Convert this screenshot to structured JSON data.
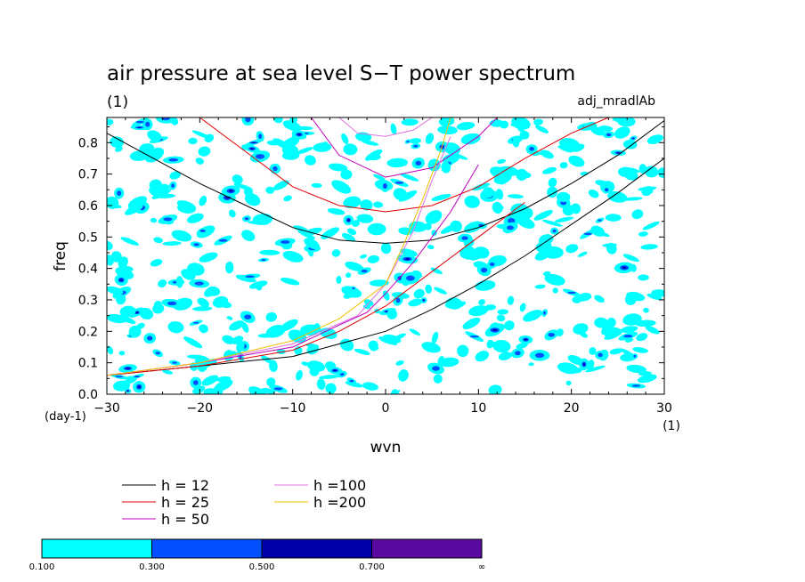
{
  "chart_data": {
    "type": "contour",
    "title": "air pressure at sea level S−T power spectrum",
    "subtitle_left": "(1)",
    "subtitle_right": "adj_mradlAb",
    "xlabel": "wvn",
    "ylabel": "freq",
    "x_unit": "(1)",
    "y_unit": "(day-1)",
    "xlim": [
      -30,
      30
    ],
    "ylim": [
      0.0,
      0.88
    ],
    "x_ticks": [
      "−30",
      "−20",
      "−10",
      "0",
      "10",
      "20",
      "30"
    ],
    "x_tick_values": [
      -30,
      -20,
      -10,
      0,
      10,
      20,
      30
    ],
    "y_ticks": [
      "0.0",
      "0.1",
      "0.2",
      "0.3",
      "0.4",
      "0.5",
      "0.6",
      "0.7",
      "0.8"
    ],
    "y_tick_values": [
      0.0,
      0.1,
      0.2,
      0.3,
      0.4,
      0.5,
      0.6,
      0.7,
      0.8
    ],
    "contour_levels": [
      0.1,
      0.3,
      0.5,
      0.7
    ],
    "colorbar": {
      "labels": [
        "0.100",
        "0.300",
        "0.500",
        "0.700",
        "∞"
      ],
      "colors": [
        "#00ffff",
        "#0050ff",
        "#0000a8",
        "#5a0aa0"
      ]
    },
    "contour_fill_color": "#00ffff",
    "dispersion_curves": [
      {
        "name": "h = 12",
        "color": "#000000"
      },
      {
        "name": "h = 25",
        "color": "#e00000"
      },
      {
        "name": "h = 50",
        "color": "#c000c0"
      },
      {
        "name": "h =100",
        "color": "#e070e0"
      },
      {
        "name": "h =200",
        "color": "#f0c000"
      }
    ],
    "curve_data": {
      "h12_lower": {
        "x": [
          -30,
          -20,
          -10,
          -5,
          0,
          5,
          10,
          15,
          20,
          25,
          30
        ],
        "y": [
          0.06,
          0.09,
          0.12,
          0.16,
          0.2,
          0.27,
          0.35,
          0.44,
          0.54,
          0.64,
          0.75
        ]
      },
      "h12_upper": {
        "x": [
          -30,
          -25,
          -20,
          -15,
          -10,
          -5,
          0,
          5,
          10,
          15,
          20,
          25,
          30
        ],
        "y": [
          0.83,
          0.75,
          0.67,
          0.6,
          0.53,
          0.49,
          0.48,
          0.49,
          0.53,
          0.59,
          0.67,
          0.76,
          0.87
        ]
      },
      "h25_lower": {
        "x": [
          -30,
          -20,
          -10,
          -5,
          0,
          5,
          10,
          15
        ],
        "y": [
          0.06,
          0.09,
          0.14,
          0.2,
          0.28,
          0.39,
          0.5,
          0.61
        ]
      },
      "h25_upper": {
        "x": [
          -20,
          -15,
          -10,
          -5,
          0,
          5,
          10,
          15,
          20,
          24
        ],
        "y": [
          0.88,
          0.77,
          0.66,
          0.6,
          0.58,
          0.6,
          0.66,
          0.75,
          0.83,
          0.88
        ]
      },
      "h50_lower": {
        "x": [
          -30,
          -20,
          -10,
          -5,
          -2,
          0,
          3,
          7,
          10
        ],
        "y": [
          0.06,
          0.1,
          0.15,
          0.22,
          0.26,
          0.32,
          0.42,
          0.58,
          0.73
        ]
      },
      "h50_upper": {
        "x": [
          -8,
          -5,
          0,
          5,
          10,
          12
        ],
        "y": [
          0.88,
          0.76,
          0.69,
          0.72,
          0.82,
          0.88
        ]
      },
      "h100_lower": {
        "x": [
          -30,
          -20,
          -10,
          -3,
          0,
          3,
          5,
          7
        ],
        "y": [
          0.06,
          0.1,
          0.16,
          0.25,
          0.35,
          0.52,
          0.68,
          0.82
        ]
      },
      "h100_upper": {
        "x": [
          -5,
          -3,
          0,
          3,
          5
        ],
        "y": [
          0.88,
          0.83,
          0.82,
          0.84,
          0.88
        ]
      },
      "h200_lower": {
        "x": [
          -30,
          -20,
          -10,
          -5,
          0,
          2,
          4,
          6,
          7
        ],
        "y": [
          0.06,
          0.1,
          0.17,
          0.24,
          0.35,
          0.48,
          0.62,
          0.78,
          0.88
        ]
      }
    }
  }
}
